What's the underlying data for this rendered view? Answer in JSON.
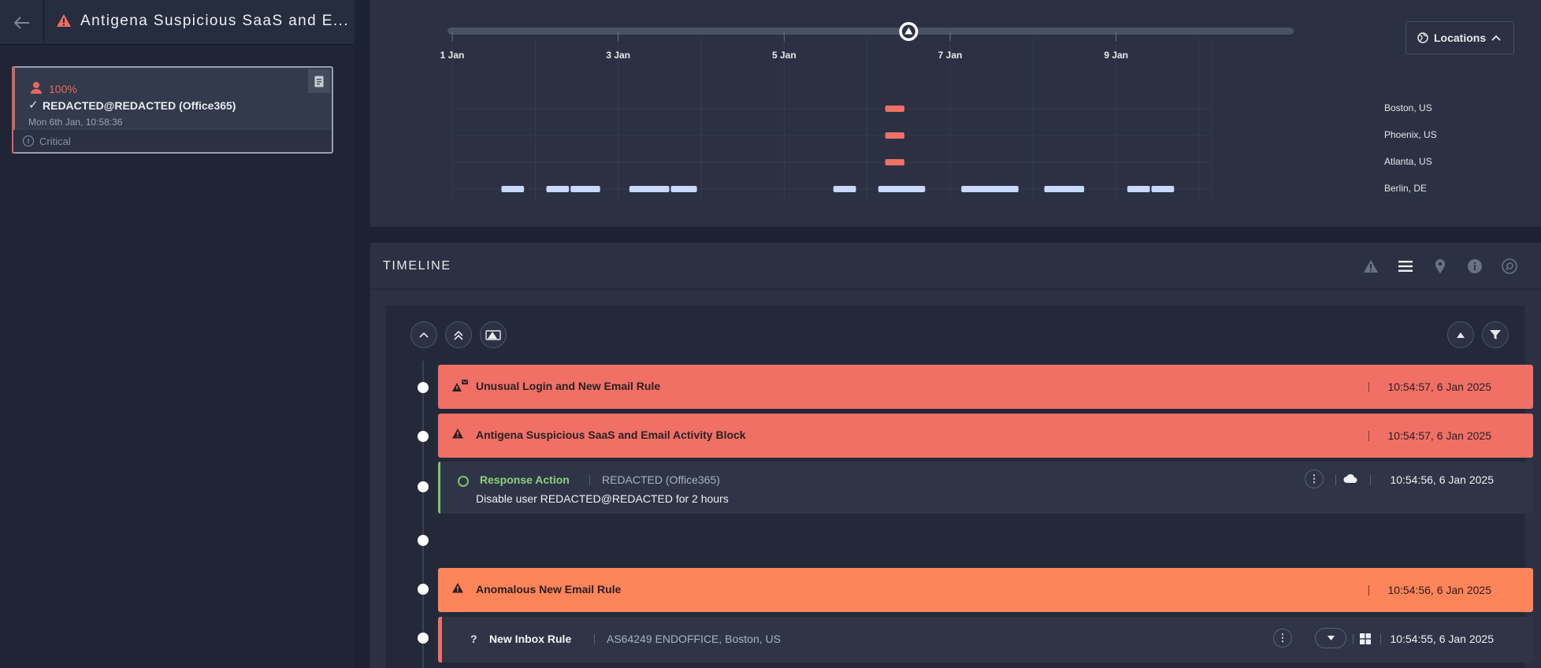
{
  "header": {
    "title": "Antigena Suspicious SaaS and E...",
    "back_icon": "arrow-left-icon",
    "alert_icon": "warning-triangle-icon",
    "alert_color": "#f06b5d"
  },
  "device_card": {
    "score": "100%",
    "check": "✓",
    "name": "REDACTED@REDACTED (Office365)",
    "date": "Mon 6th Jan, 10:58:36",
    "info_glyph": "i",
    "severity": "Critical",
    "accent_color": "#e4695d"
  },
  "chart_data": {
    "type": "timeline",
    "title": "",
    "xlabel": "",
    "ylabel": "",
    "x_ticks": [
      "1 Jan",
      "3 Jan",
      "5 Jan",
      "7 Jan",
      "9 Jan"
    ],
    "xlim": [
      "2025-01-01",
      "2025-01-10"
    ],
    "locations": [
      "Boston, US",
      "Phoenix, US",
      "Atlanta, US",
      "Berlin, DE"
    ],
    "slider_marker": "2025-01-06",
    "series": [
      {
        "location": "Boston, US",
        "color": "#f07066",
        "intervals": [
          [
            "2025-01-06T05:00",
            "2025-01-06T11:00"
          ]
        ]
      },
      {
        "location": "Phoenix, US",
        "color": "#f07066",
        "intervals": [
          [
            "2025-01-06T05:00",
            "2025-01-06T11:00"
          ]
        ]
      },
      {
        "location": "Atlanta, US",
        "color": "#f07066",
        "intervals": [
          [
            "2025-01-06T05:00",
            "2025-01-06T11:00"
          ]
        ]
      },
      {
        "location": "Berlin, DE",
        "color": "#c9d8ff",
        "intervals": [
          [
            "2025-01-01T14:00",
            "2025-01-01T21:00"
          ],
          [
            "2025-01-02T03:00",
            "2025-01-02T10:00"
          ],
          [
            "2025-01-02T10:00",
            "2025-01-02T19:00"
          ],
          [
            "2025-01-03T03:00",
            "2025-01-03T15:00"
          ],
          [
            "2025-01-03T15:00",
            "2025-01-03T23:00"
          ],
          [
            "2025-01-05T14:00",
            "2025-01-05T21:00"
          ],
          [
            "2025-01-06T03:00",
            "2025-01-06T17:00"
          ],
          [
            "2025-01-07T03:00",
            "2025-01-07T20:00"
          ],
          [
            "2025-01-08T03:00",
            "2025-01-08T15:00"
          ],
          [
            "2025-01-09T03:00",
            "2025-01-09T10:00"
          ],
          [
            "2025-01-09T10:00",
            "2025-01-09T17:00"
          ]
        ]
      }
    ]
  },
  "locations_button": {
    "label": "Locations",
    "icon": "globe-icon",
    "chevron": "chevron-up-icon"
  },
  "timeline": {
    "title": "TIMELINE",
    "tools": [
      "warning-icon",
      "list-icon",
      "location-pin-icon",
      "info-icon",
      "search-icon"
    ],
    "controls_left": [
      "chevron-up-icon",
      "double-chevron-up-icon",
      "model-breach-icon"
    ],
    "controls_right": [
      "triangle-up-icon",
      "filter-icon"
    ],
    "events": [
      {
        "type": "model",
        "title": "Unusual Login and New Email Rule",
        "time": "10:54:57, 6 Jan 2025",
        "color": "#f07066"
      },
      {
        "type": "model",
        "title": "Antigena Suspicious SaaS and Email Activity Block",
        "time": "10:54:57, 6 Jan 2025",
        "color": "#f07066"
      },
      {
        "type": "response",
        "label": "Response Action",
        "source": "REDACTED (Office365)",
        "description": "Disable user REDACTED@REDACTED for 2 hours",
        "time": "10:54:56, 6 Jan 2025",
        "kebab": "⋮",
        "icon": "cloud-icon"
      },
      {
        "type": "model",
        "title": "Anomalous New Email Rule",
        "time": "10:54:56, 6 Jan 2025",
        "color": "#fe8459"
      },
      {
        "type": "event",
        "glyph": "?",
        "title": "New Inbox Rule",
        "source": "AS64249 ENDOFFICE, Boston, US",
        "time": "10:54:55, 6 Jan 2025",
        "kebab": "⋮",
        "icon": "windows-icon"
      }
    ]
  }
}
